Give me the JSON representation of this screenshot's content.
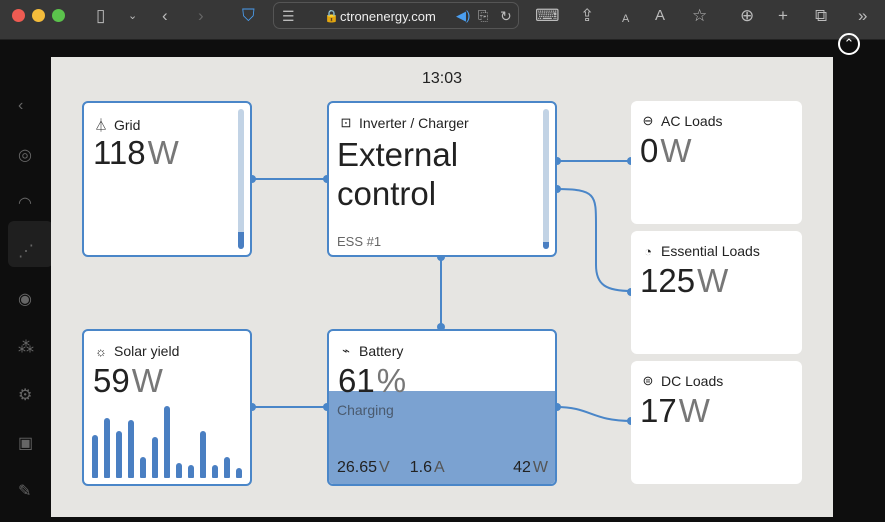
{
  "browser": {
    "url": "ctronenergy.com",
    "icons": [
      "sidebar-icon",
      "chevron-down-icon",
      "back-icon",
      "forward-icon",
      "shield-icon",
      "reader-icon",
      "lock-icon",
      "speaker-icon",
      "translate-icon",
      "reload-icon",
      "screen-record-icon",
      "share-icon",
      "text-smaller-icon",
      "text-larger-icon",
      "star-icon",
      "download-icon",
      "plus-icon",
      "tabs-icon",
      "more-icon"
    ],
    "text_small": "A",
    "text_large": "A"
  },
  "time": "13:03",
  "colors": {
    "accent": "#4a86c8",
    "battery_fill": "#7ba2d1",
    "panel": "#e6e5e2"
  },
  "grid": {
    "title": "Grid",
    "value": "118",
    "unit": "W",
    "level": 0.12
  },
  "inverter": {
    "title": "Inverter / Charger",
    "line1": "External",
    "line2": "control",
    "sub": "ESS #1",
    "level": 0.05
  },
  "ac_loads": {
    "title": "AC Loads",
    "value": "0",
    "unit": "W"
  },
  "essential_loads": {
    "title": "Essential Loads",
    "value": "125",
    "unit": "W"
  },
  "solar": {
    "title": "Solar yield",
    "value": "59",
    "unit": "W",
    "history": [
      60,
      84,
      65,
      80,
      29,
      57,
      100,
      21,
      18,
      65,
      18,
      29,
      14
    ]
  },
  "battery": {
    "title": "Battery",
    "soc": "61",
    "soc_unit": "%",
    "soc_level": 0.61,
    "status": "Charging",
    "voltage": "26.65",
    "voltage_unit": "V",
    "current": "1.6",
    "current_unit": "A",
    "power": "42",
    "power_unit": "W"
  },
  "dc_loads": {
    "title": "DC Loads",
    "value": "17",
    "unit": "W"
  }
}
